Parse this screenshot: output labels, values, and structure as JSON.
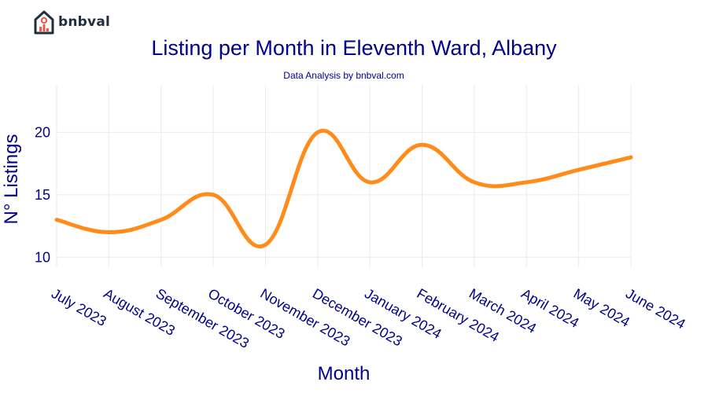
{
  "brand": {
    "name": "bnbval"
  },
  "chart_data": {
    "type": "line",
    "title": "Listing per Month in Eleventh Ward, Albany",
    "subtitle": "Data Analysis by bnbval.com",
    "xlabel": "Month",
    "ylabel": "N° Listings",
    "categories": [
      "July 2023",
      "August 2023",
      "September 2023",
      "October 2023",
      "November 2023",
      "December 2023",
      "January 2024",
      "February 2024",
      "March 2024",
      "April 2024",
      "May 2024",
      "June 2024"
    ],
    "values": [
      13,
      12,
      13,
      15,
      11,
      20,
      16,
      19,
      16,
      16,
      17,
      18
    ],
    "yticks": [
      10,
      15,
      20
    ],
    "ylim": [
      9.2,
      23.8
    ],
    "grid": true,
    "line_color": "#ff8c1a",
    "text_color": "#00008b",
    "grid_color": "#ebebeb"
  }
}
